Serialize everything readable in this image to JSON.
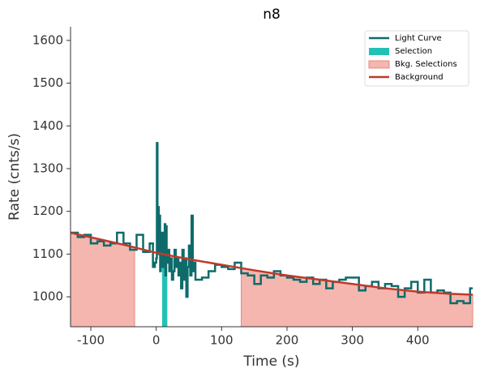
{
  "chart_data": {
    "type": "lightcurve",
    "title": "n8",
    "x_label": "Time (s)",
    "y_label": "Rate (cnts/s)",
    "xlim": [
      -131,
      484
    ],
    "ylim": [
      930,
      1632
    ],
    "xticks": [
      -100,
      0,
      100,
      200,
      300,
      400
    ],
    "yticks": [
      1000,
      1100,
      1200,
      1300,
      1400,
      1500,
      1600
    ],
    "legend": "upper right",
    "series": [
      {
        "name": "Light Curve",
        "color": "#0f6b6b",
        "x": [
          -131,
          -120,
          -110,
          -100,
          -90,
          -80,
          -70,
          -60,
          -50,
          -40,
          -30,
          -20,
          -10,
          -5,
          -2,
          0,
          1,
          2,
          3,
          4,
          5,
          6,
          7,
          8,
          9,
          10,
          11,
          12,
          13,
          14,
          15,
          16,
          18,
          20,
          22,
          24,
          26,
          28,
          30,
          32,
          34,
          36,
          38,
          40,
          42,
          44,
          46,
          48,
          50,
          52,
          54,
          56,
          58,
          60,
          70,
          80,
          90,
          100,
          110,
          120,
          130,
          140,
          150,
          160,
          170,
          180,
          190,
          200,
          210,
          220,
          230,
          240,
          250,
          260,
          270,
          280,
          290,
          300,
          310,
          320,
          330,
          340,
          350,
          360,
          370,
          380,
          390,
          400,
          410,
          420,
          430,
          440,
          450,
          460,
          470,
          480
        ],
        "values": [
          1150,
          1140,
          1145,
          1125,
          1130,
          1120,
          1125,
          1150,
          1125,
          1110,
          1145,
          1105,
          1125,
          1070,
          1080,
          1090,
          1360,
          1150,
          1210,
          1100,
          1190,
          1060,
          1140,
          1080,
          1150,
          1070,
          1120,
          1090,
          1170,
          1050,
          1165,
          1080,
          1110,
          1060,
          1090,
          1040,
          1060,
          1110,
          1070,
          1090,
          1050,
          1080,
          1020,
          1110,
          1040,
          1090,
          1000,
          1070,
          1120,
          1050,
          1190,
          1060,
          1080,
          1040,
          1045,
          1060,
          1075,
          1070,
          1065,
          1080,
          1055,
          1050,
          1030,
          1050,
          1045,
          1060,
          1050,
          1045,
          1040,
          1035,
          1045,
          1030,
          1040,
          1020,
          1035,
          1040,
          1045,
          1045,
          1015,
          1025,
          1035,
          1020,
          1030,
          1025,
          1000,
          1020,
          1035,
          1010,
          1040,
          1010,
          1015,
          1010,
          985,
          990,
          985,
          1020
        ]
      },
      {
        "name": "Selection",
        "color": "#22c1b5",
        "range": [
          9,
          17
        ]
      },
      {
        "name": "Bkg. Selections",
        "color": "#f4b6ae",
        "ranges": [
          [
            -131,
            -33
          ],
          [
            130,
            484
          ]
        ]
      },
      {
        "name": "Background",
        "color": "#c0392b",
        "x": [
          -131,
          -50,
          0,
          50,
          100,
          150,
          200,
          250,
          300,
          350,
          400,
          450,
          484
        ],
        "values": [
          1150,
          1122,
          1103,
          1088,
          1075,
          1062,
          1050,
          1040,
          1030,
          1020,
          1012,
          1007,
          1005
        ]
      }
    ]
  }
}
